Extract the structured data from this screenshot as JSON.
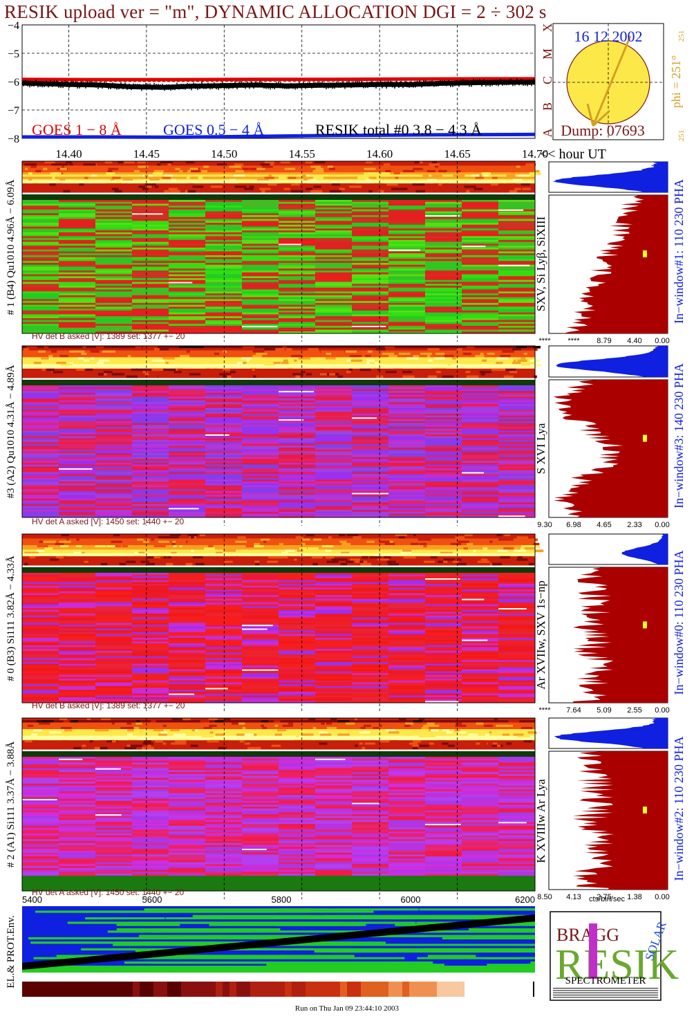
{
  "title": "RESIK upload ver = \"m\", DYNAMIC ALLOCATION  DGI =   2 ÷ 302 s",
  "goes_panel": {
    "y_ticks": [
      "−4",
      "−5",
      "−6",
      "−7",
      "−8"
    ],
    "legend": {
      "goes_long": "GOES 1 − 8 Å",
      "goes_short": "GOES 0.5 − 4 Å",
      "resik_total": "RESIK total #0  3.8 − 4.3 Å"
    },
    "class_letters": [
      "X",
      "M",
      "C",
      "B",
      "A"
    ],
    "colors": {
      "goes_long": "#e00000",
      "goes_short": "#1020e0",
      "resik_total": "#000000"
    }
  },
  "sun_panel": {
    "date": "16 12 2002",
    "dump": "Dump: 07693",
    "phi_label": "phi = 251°",
    "phi_small_top": "251",
    "phi_small_bottom": "251"
  },
  "time_axis": {
    "ticks": [
      "14.40",
      "14.45",
      "14.50",
      "14.55",
      "14.60",
      "14.65",
      "14.70"
    ],
    "unit_label": "<< hour UT"
  },
  "channels": [
    {
      "side_label": "# 1 (B4) Qu1010 4.96Å − 6.09Å",
      "lines_label": "SXV, Si Lyβ, SiXIII",
      "window_label": "In−window#1:  110 230 PHA",
      "hv_label": "HV det B asked [V]:  1389 set:  1377 +−  20",
      "scale_ticks": [
        "****",
        "****",
        "8.79",
        "4.40",
        "0.00"
      ],
      "palette": "green"
    },
    {
      "side_label": "#3 (A2) Qu1010  4.31Å − 4.89Å",
      "lines_label": "S XVI Lya",
      "window_label": "In−window#3:  140 230 PHA",
      "hv_label": "HV det A asked [V]:  1450 set:  1440 +−  20",
      "scale_ticks": [
        "9.30",
        "6.98",
        "4.65",
        "2.33",
        "0.00"
      ],
      "palette": "purple"
    },
    {
      "side_label": "# 0 (B3) Si111  3.82Å − 4.33Å",
      "lines_label": "Ar XVIIw,  SXV 1s−np",
      "window_label": "In−window#0:  110 230 PHA",
      "hv_label": "HV det B asked [V]:  1389 set:  1377 +−  20",
      "scale_ticks": [
        "****",
        "7.64",
        "5.09",
        "2.55",
        "0.00"
      ],
      "palette": "red"
    },
    {
      "side_label": "# 2 (A1) Si111  3.37Å − 3.88Å",
      "lines_label": "K XVIIIw  Ar Lya",
      "window_label": "In−window#2:  110 230 PHA",
      "hv_label": "HV det A asked [V]:  1450 set:  1440 +−  20",
      "scale_ticks": [
        "8.50",
        "4.13",
        "2.75",
        "1.38",
        "0.00"
      ],
      "palette": "magenta"
    }
  ],
  "scale_unit": "cts/bin/sec",
  "seconds_axis": {
    "ticks": [
      "5400",
      "5600",
      "5800",
      "6000",
      "6200"
    ]
  },
  "env_label": "EL.& PROT.Env.",
  "logo": {
    "big": "RESIK",
    "bragg": "BRAGG",
    "solar": "SOLAR",
    "spectrometer": "SPECTROMETER"
  },
  "run_on": "Run on Thu Jan 09 23:44:10 2003",
  "chart_data": [
    {
      "type": "line",
      "title": "",
      "xlabel": "<< hour UT",
      "ylabel": "",
      "xlim": [
        14.37,
        14.7
      ],
      "ylim": [
        -8,
        -4
      ],
      "x_ticks": [
        14.4,
        14.45,
        14.5,
        14.55,
        14.6,
        14.65,
        14.7
      ],
      "y_ticks": [
        -4,
        -5,
        -6,
        -7,
        -8
      ],
      "grid": true,
      "series": [
        {
          "name": "GOES 1 − 8 Å",
          "color": "#e00000",
          "x": [
            14.37,
            14.42,
            14.47,
            14.52,
            14.57,
            14.62,
            14.67,
            14.7
          ],
          "values": [
            -5.92,
            -5.93,
            -5.93,
            -5.92,
            -5.92,
            -5.91,
            -5.9,
            -5.9
          ]
        },
        {
          "name": "GOES 0.5 − 4 Å",
          "color": "#1020e0",
          "x": [
            14.37,
            14.42,
            14.47,
            14.52,
            14.57,
            14.62,
            14.67,
            14.7
          ],
          "values": [
            -7.95,
            -7.95,
            -7.96,
            -7.93,
            -7.9,
            -7.88,
            -7.87,
            -7.86
          ]
        },
        {
          "name": "RESIK total #0  3.8 − 4.3 Å",
          "color": "#000000",
          "x": [
            14.37,
            14.4,
            14.42,
            14.44,
            14.46,
            14.48,
            14.5,
            14.52,
            14.54,
            14.56,
            14.58,
            14.6,
            14.62,
            14.64,
            14.66,
            14.68,
            14.7
          ],
          "values": [
            -6.05,
            -6.1,
            -6.12,
            -6.18,
            -6.2,
            -6.16,
            -6.14,
            -6.12,
            -6.15,
            -6.13,
            -6.12,
            -6.1,
            -6.1,
            -6.06,
            -6.04,
            -6.02,
            -6.02
          ]
        }
      ]
    }
  ]
}
